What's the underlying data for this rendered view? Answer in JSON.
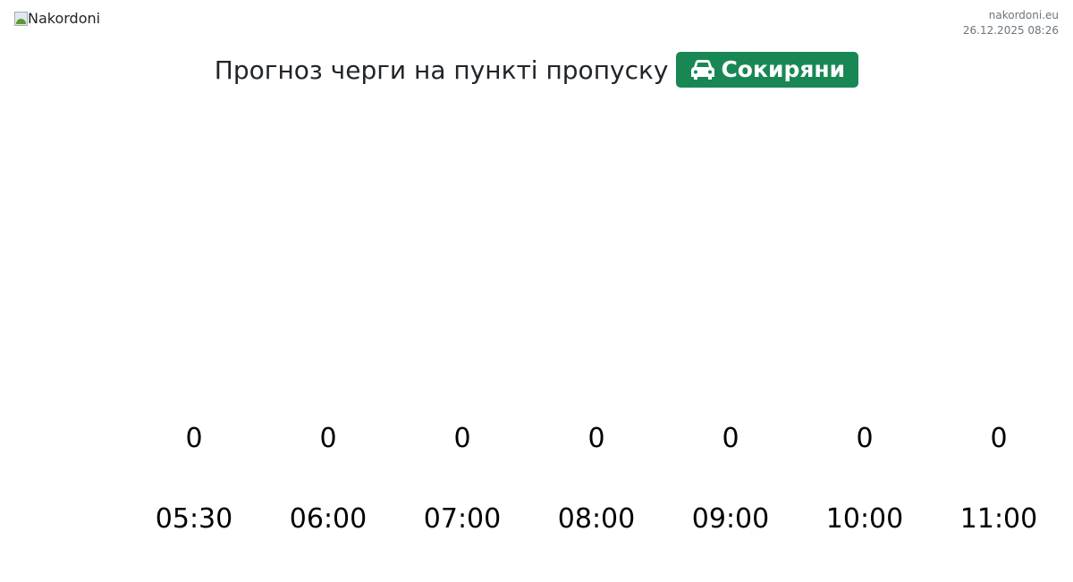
{
  "header": {
    "logo_alt": "Nakordoni",
    "site": "nakordoni.eu",
    "datetime": "26.12.2025 08:26"
  },
  "title": {
    "text": "Прогноз черги на пункті пропуску",
    "checkpoint": "Сокиряни",
    "checkpoint_icon": "car-icon",
    "accent_color": "#198754"
  },
  "chart_data": {
    "type": "bar",
    "categories": [
      "05:30",
      "06:00",
      "07:00",
      "08:00",
      "09:00",
      "10:00",
      "11:00"
    ],
    "values": [
      0,
      0,
      0,
      0,
      0,
      0,
      0
    ],
    "bar_color": "#198754"
  }
}
